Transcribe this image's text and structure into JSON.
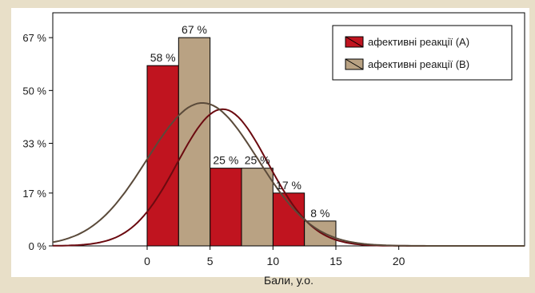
{
  "chart_data": {
    "type": "bar",
    "xlabel": "Бали, у.о.",
    "ylabel": "",
    "x_ticks": [
      "0",
      "5",
      "10",
      "15",
      "20"
    ],
    "x_tick_values": [
      0,
      5,
      10,
      15,
      20
    ],
    "xlim": [
      -7.5,
      30
    ],
    "y_ticks": [
      "0 %",
      "17 %",
      "33 %",
      "50 %",
      "67 %"
    ],
    "y_tick_values": [
      0,
      17,
      33,
      50,
      67
    ],
    "ylim": [
      0,
      75
    ],
    "grid": false,
    "legend_position": "top-right",
    "bin_width": 2.5,
    "series": [
      {
        "name": "афективні реакції (А)",
        "color": "#c0141f",
        "curve_color": "#6b0a10",
        "bins": [
          0,
          5,
          10
        ],
        "values": [
          58,
          25,
          17
        ],
        "labels": [
          "58 %",
          "25 %",
          "17 %"
        ],
        "curve_peak": 44,
        "curve_mean": 6,
        "curve_sd": 3.6
      },
      {
        "name": "афективні реакції (В)",
        "color": "#b9a283",
        "curve_color": "#5a4a3a",
        "bins": [
          2.5,
          7.5,
          12.5
        ],
        "values": [
          67,
          25,
          8
        ],
        "labels": [
          "67 %",
          "25 %",
          "8 %"
        ],
        "curve_peak": 46,
        "curve_mean": 4.4,
        "curve_sd": 4.4
      }
    ]
  }
}
